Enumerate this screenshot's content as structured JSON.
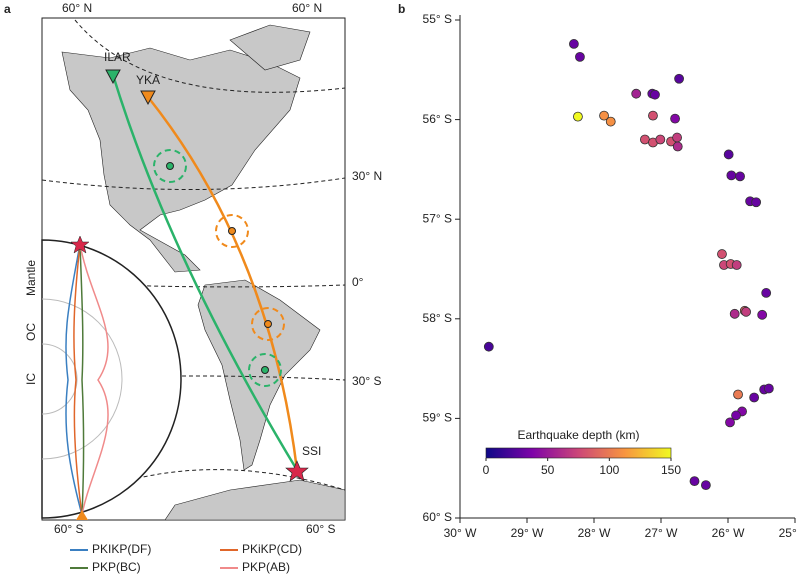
{
  "chart_data": [
    {
      "type": "map",
      "panel": "a",
      "graticule_labels": {
        "top_left": "60° N",
        "top_right": "60° N",
        "lat30n": "30° N",
        "equator": "0°",
        "lat30s": "30° S",
        "bottom_left": "60° S",
        "bottom_right": "60° S"
      },
      "stations": [
        "ILAR",
        "YKA",
        "SSI"
      ],
      "layers": [
        "Mantle",
        "OC",
        "IC"
      ],
      "series": [
        {
          "name": "PKIKP(DF)",
          "color": "#3a7fc1"
        },
        {
          "name": "PKiKP(CD)",
          "color": "#e0662a"
        },
        {
          "name": "PKP(BC)",
          "color": "#4f7a3a"
        },
        {
          "name": "PKP(AB)",
          "color": "#f08a8a"
        }
      ]
    },
    {
      "type": "scatter",
      "panel": "b",
      "xlim": [
        -30,
        -25
      ],
      "xticks": [
        {
          "value": -30,
          "label": "30° W"
        },
        {
          "value": -29,
          "label": "29° W"
        },
        {
          "value": -28,
          "label": "28° W"
        },
        {
          "value": -27,
          "label": "27° W"
        },
        {
          "value": -26,
          "label": "26° W"
        },
        {
          "value": -25,
          "label": "25° W"
        }
      ],
      "ylim": [
        -60,
        -55
      ],
      "yticks": [
        {
          "value": -55,
          "label": "55° S"
        },
        {
          "value": -56,
          "label": "56° S"
        },
        {
          "value": -57,
          "label": "57° S"
        },
        {
          "value": -58,
          "label": "58° S"
        },
        {
          "value": -59,
          "label": "59° S"
        },
        {
          "value": -60,
          "label": "60° S"
        }
      ],
      "colorbar": {
        "label": "Earthquake depth (km)",
        "clim": [
          0,
          150
        ],
        "ticks": [
          0,
          50,
          100,
          150
        ],
        "colormap": [
          "#0d0887",
          "#7e03a8",
          "#cc4778",
          "#f89540",
          "#f0f921"
        ]
      },
      "series": [
        {
          "x": [
            -29.57,
            -28.3,
            -28.21,
            -26.73,
            -27.37,
            -27.13,
            -27.09,
            -28.24,
            -27.85,
            -27.75,
            -27.12,
            -26.79,
            -27.24,
            -27.12,
            -27.01,
            -26.85,
            -26.76,
            -26.75,
            -25.99,
            -25.95,
            -25.82,
            -25.67,
            -25.58,
            -26.09,
            -26.06,
            -25.96,
            -25.87,
            -25.43,
            -25.75,
            -25.9,
            -25.73,
            -25.49,
            -25.85,
            -25.61,
            -25.46,
            -25.39,
            -25.79,
            -25.88,
            -25.97,
            -26.5,
            -26.33
          ],
          "values": [
            -58.28,
            -55.24,
            -55.37,
            -55.59,
            -55.74,
            -55.74,
            -55.75,
            -55.97,
            -55.96,
            -56.02,
            -55.96,
            -55.99,
            -56.2,
            -56.23,
            -56.2,
            -56.22,
            -56.18,
            -56.27,
            -56.35,
            -56.56,
            -56.57,
            -56.82,
            -56.83,
            -57.35,
            -57.46,
            -57.45,
            -57.46,
            -57.74,
            -57.92,
            -57.95,
            -57.93,
            -57.96,
            -58.76,
            -58.79,
            -58.71,
            -58.7,
            -58.93,
            -58.97,
            -59.04,
            -59.63,
            -59.67
          ],
          "depths": [
            20,
            30,
            30,
            25,
            55,
            30,
            30,
            150,
            110,
            110,
            80,
            40,
            80,
            80,
            75,
            80,
            70,
            60,
            25,
            30,
            30,
            30,
            30,
            80,
            75,
            80,
            70,
            30,
            90,
            60,
            70,
            40,
            100,
            30,
            30,
            30,
            40,
            35,
            40,
            30,
            30
          ]
        }
      ]
    }
  ]
}
